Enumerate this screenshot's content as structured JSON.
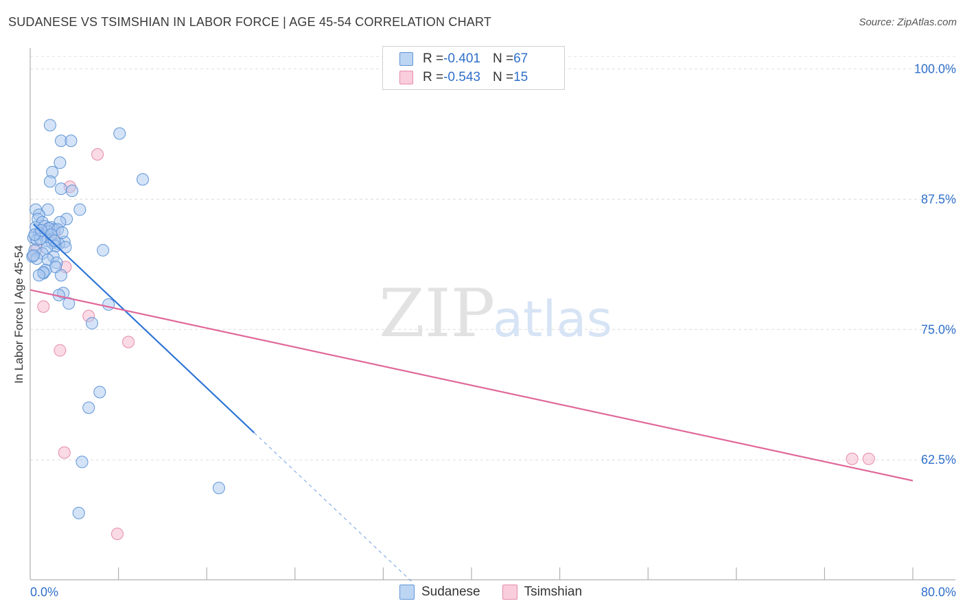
{
  "header": {
    "title": "SUDANESE VS TSIMSHIAN IN LABOR FORCE | AGE 45-54 CORRELATION CHART",
    "source": "Source: ZipAtlas.com"
  },
  "watermark": {
    "zip": "ZIP",
    "atlas": "atlas"
  },
  "legend": {
    "sudanese": {
      "r_label": "R = ",
      "r_value": "-0.401",
      "n_label": "N = ",
      "n_value": "67"
    },
    "tsimshian": {
      "r_label": "R = ",
      "r_value": "-0.543",
      "n_label": "N = ",
      "n_value": "15"
    }
  },
  "chart_data": {
    "type": "scatter",
    "title": "SUDANESE VS TSIMSHIAN IN LABOR FORCE | AGE 45-54 CORRELATION CHART",
    "xlabel": "",
    "ylabel": "In Labor Force | Age 45-54",
    "xlim": [
      0,
      80
    ],
    "ylim": [
      51,
      102
    ],
    "x_tick_labels": [
      "0.0%",
      "80.0%"
    ],
    "y_ticks": [
      62.5,
      75.0,
      87.5,
      100.0
    ],
    "y_tick_labels": [
      "62.5%",
      "75.0%",
      "87.5%",
      "100.0%"
    ],
    "grid": true,
    "legend_position": "bottom-center",
    "colors": {
      "sudanese_fill": "#aac8f0",
      "sudanese_stroke": "#5f95d6",
      "sudanese_line": "#2d74d6",
      "tsimshian_fill": "#f6bcd0",
      "tsimshian_stroke": "#e58aab",
      "tsimshian_line": "#e0679a",
      "tick_label": "#2f6fc9"
    },
    "series": [
      {
        "name": "Sudanese",
        "points": [
          [
            1.8,
            94.6
          ],
          [
            8.1,
            93.8
          ],
          [
            2.8,
            93.1
          ],
          [
            3.7,
            93.1
          ],
          [
            2.7,
            91.0
          ],
          [
            2.0,
            90.1
          ],
          [
            1.8,
            89.2
          ],
          [
            10.2,
            89.4
          ],
          [
            2.8,
            88.5
          ],
          [
            3.8,
            88.3
          ],
          [
            4.5,
            86.5
          ],
          [
            0.5,
            86.5
          ],
          [
            1.6,
            86.5
          ],
          [
            0.8,
            86.0
          ],
          [
            0.7,
            85.6
          ],
          [
            1.1,
            85.3
          ],
          [
            3.3,
            85.6
          ],
          [
            2.7,
            85.3
          ],
          [
            0.5,
            84.8
          ],
          [
            1.3,
            84.9
          ],
          [
            1.9,
            84.8
          ],
          [
            2.2,
            84.6
          ],
          [
            1.6,
            84.4
          ],
          [
            0.8,
            84.2
          ],
          [
            1.3,
            84.0
          ],
          [
            0.3,
            83.8
          ],
          [
            0.6,
            83.6
          ],
          [
            1.5,
            83.5
          ],
          [
            3.1,
            83.4
          ],
          [
            2.0,
            83.3
          ],
          [
            2.6,
            83.2
          ],
          [
            2.3,
            83.0
          ],
          [
            3.2,
            82.9
          ],
          [
            1.5,
            82.8
          ],
          [
            6.6,
            82.6
          ],
          [
            0.4,
            82.6
          ],
          [
            1.1,
            82.3
          ],
          [
            0.2,
            82.0
          ],
          [
            2.1,
            82.0
          ],
          [
            0.6,
            81.8
          ],
          [
            1.6,
            81.7
          ],
          [
            2.4,
            81.4
          ],
          [
            2.3,
            81.0
          ],
          [
            1.4,
            80.7
          ],
          [
            1.2,
            80.4
          ],
          [
            1.2,
            80.5
          ],
          [
            0.8,
            80.2
          ],
          [
            2.8,
            80.2
          ],
          [
            3.0,
            78.5
          ],
          [
            2.6,
            78.3
          ],
          [
            3.5,
            77.5
          ],
          [
            7.1,
            77.4
          ],
          [
            5.6,
            75.6
          ],
          [
            6.3,
            69.0
          ],
          [
            5.3,
            67.5
          ],
          [
            4.7,
            62.3
          ],
          [
            17.1,
            59.8
          ],
          [
            4.4,
            57.4
          ],
          [
            0.3,
            82.1
          ],
          [
            0.9,
            83.7
          ],
          [
            1.7,
            84.7
          ],
          [
            2.5,
            84.6
          ],
          [
            0.4,
            84.1
          ],
          [
            1.0,
            84.5
          ],
          [
            2.9,
            84.3
          ],
          [
            1.9,
            84.1
          ],
          [
            2.2,
            83.5
          ]
        ]
      },
      {
        "name": "Tsimshian",
        "points": [
          [
            6.1,
            91.8
          ],
          [
            3.6,
            88.7
          ],
          [
            0.3,
            82.1
          ],
          [
            3.2,
            81.0
          ],
          [
            1.2,
            77.2
          ],
          [
            5.3,
            76.3
          ],
          [
            8.9,
            73.8
          ],
          [
            2.7,
            73.0
          ],
          [
            3.1,
            63.2
          ],
          [
            7.9,
            55.4
          ],
          [
            74.5,
            62.6
          ],
          [
            76.0,
            62.6
          ],
          [
            1.6,
            84.7
          ],
          [
            0.6,
            82.7
          ],
          [
            2.2,
            84.2
          ]
        ]
      }
    ],
    "trend_lines": [
      {
        "name": "Sudanese",
        "solid": [
          [
            0.3,
            85.1
          ],
          [
            20.3,
            65.1
          ]
        ],
        "dashed": [
          [
            20.3,
            65.1
          ],
          [
            34.6,
            50.8
          ]
        ]
      },
      {
        "name": "Tsimshian",
        "solid": [
          [
            0.0,
            78.8
          ],
          [
            80.0,
            60.5
          ]
        ]
      }
    ]
  }
}
